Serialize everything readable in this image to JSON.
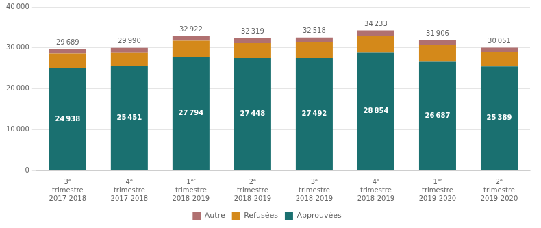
{
  "chart_data": {
    "type": "bar",
    "stacked": true,
    "categories": [
      [
        "3ᵉ",
        "trimestre",
        "2017-2018"
      ],
      [
        "4ᵉ",
        "trimestre",
        "2017-2018"
      ],
      [
        "1ᵉʳ",
        "trimestre",
        "2018-2019"
      ],
      [
        "2ᵉ",
        "trimestre",
        "2018-2019"
      ],
      [
        "3ᵉ",
        "trimestre",
        "2018-2019"
      ],
      [
        "4ᵉ",
        "trimestre",
        "2018-2019"
      ],
      [
        "1ᵉʳ",
        "trimestre",
        "2019-2020"
      ],
      [
        "2ᵉ",
        "trimestre",
        "2019-2020"
      ]
    ],
    "series": [
      {
        "name": "Approuvées",
        "color": "#1a7070",
        "values": [
          24938,
          25451,
          27794,
          27448,
          27492,
          28854,
          26687,
          25389
        ],
        "data_labels": true,
        "value_labels": [
          "24 938",
          "25 451",
          "27 794",
          "27 448",
          "27 492",
          "28 854",
          "26 687",
          "25 389"
        ]
      },
      {
        "name": "Refusées",
        "color": "#d4891a",
        "values": [
          3618,
          3363,
          3912,
          3697,
          3826,
          4087,
          3969,
          3557
        ]
      },
      {
        "name": "Autre",
        "color": "#b07070",
        "values": [
          1133,
          1176,
          1216,
          1174,
          1200,
          1292,
          1250,
          1105
        ]
      }
    ],
    "totals": [
      29689,
      29990,
      32922,
      32319,
      32518,
      34233,
      31906,
      30051
    ],
    "total_labels": [
      "29 689",
      "29 990",
      "32 922",
      "32 319",
      "32 518",
      "34 233",
      "31 906",
      "30 051"
    ],
    "ylim": [
      0,
      40000
    ],
    "yticks": [
      0,
      {
        "value": 10000,
        "label": "10 000"
      },
      {
        "value": 20000,
        "label": "20 000"
      },
      {
        "value": 30000,
        "label": "30 000"
      },
      {
        "value": 40000,
        "label": "40 000"
      }
    ],
    "grid": true,
    "legend": "bottom"
  }
}
